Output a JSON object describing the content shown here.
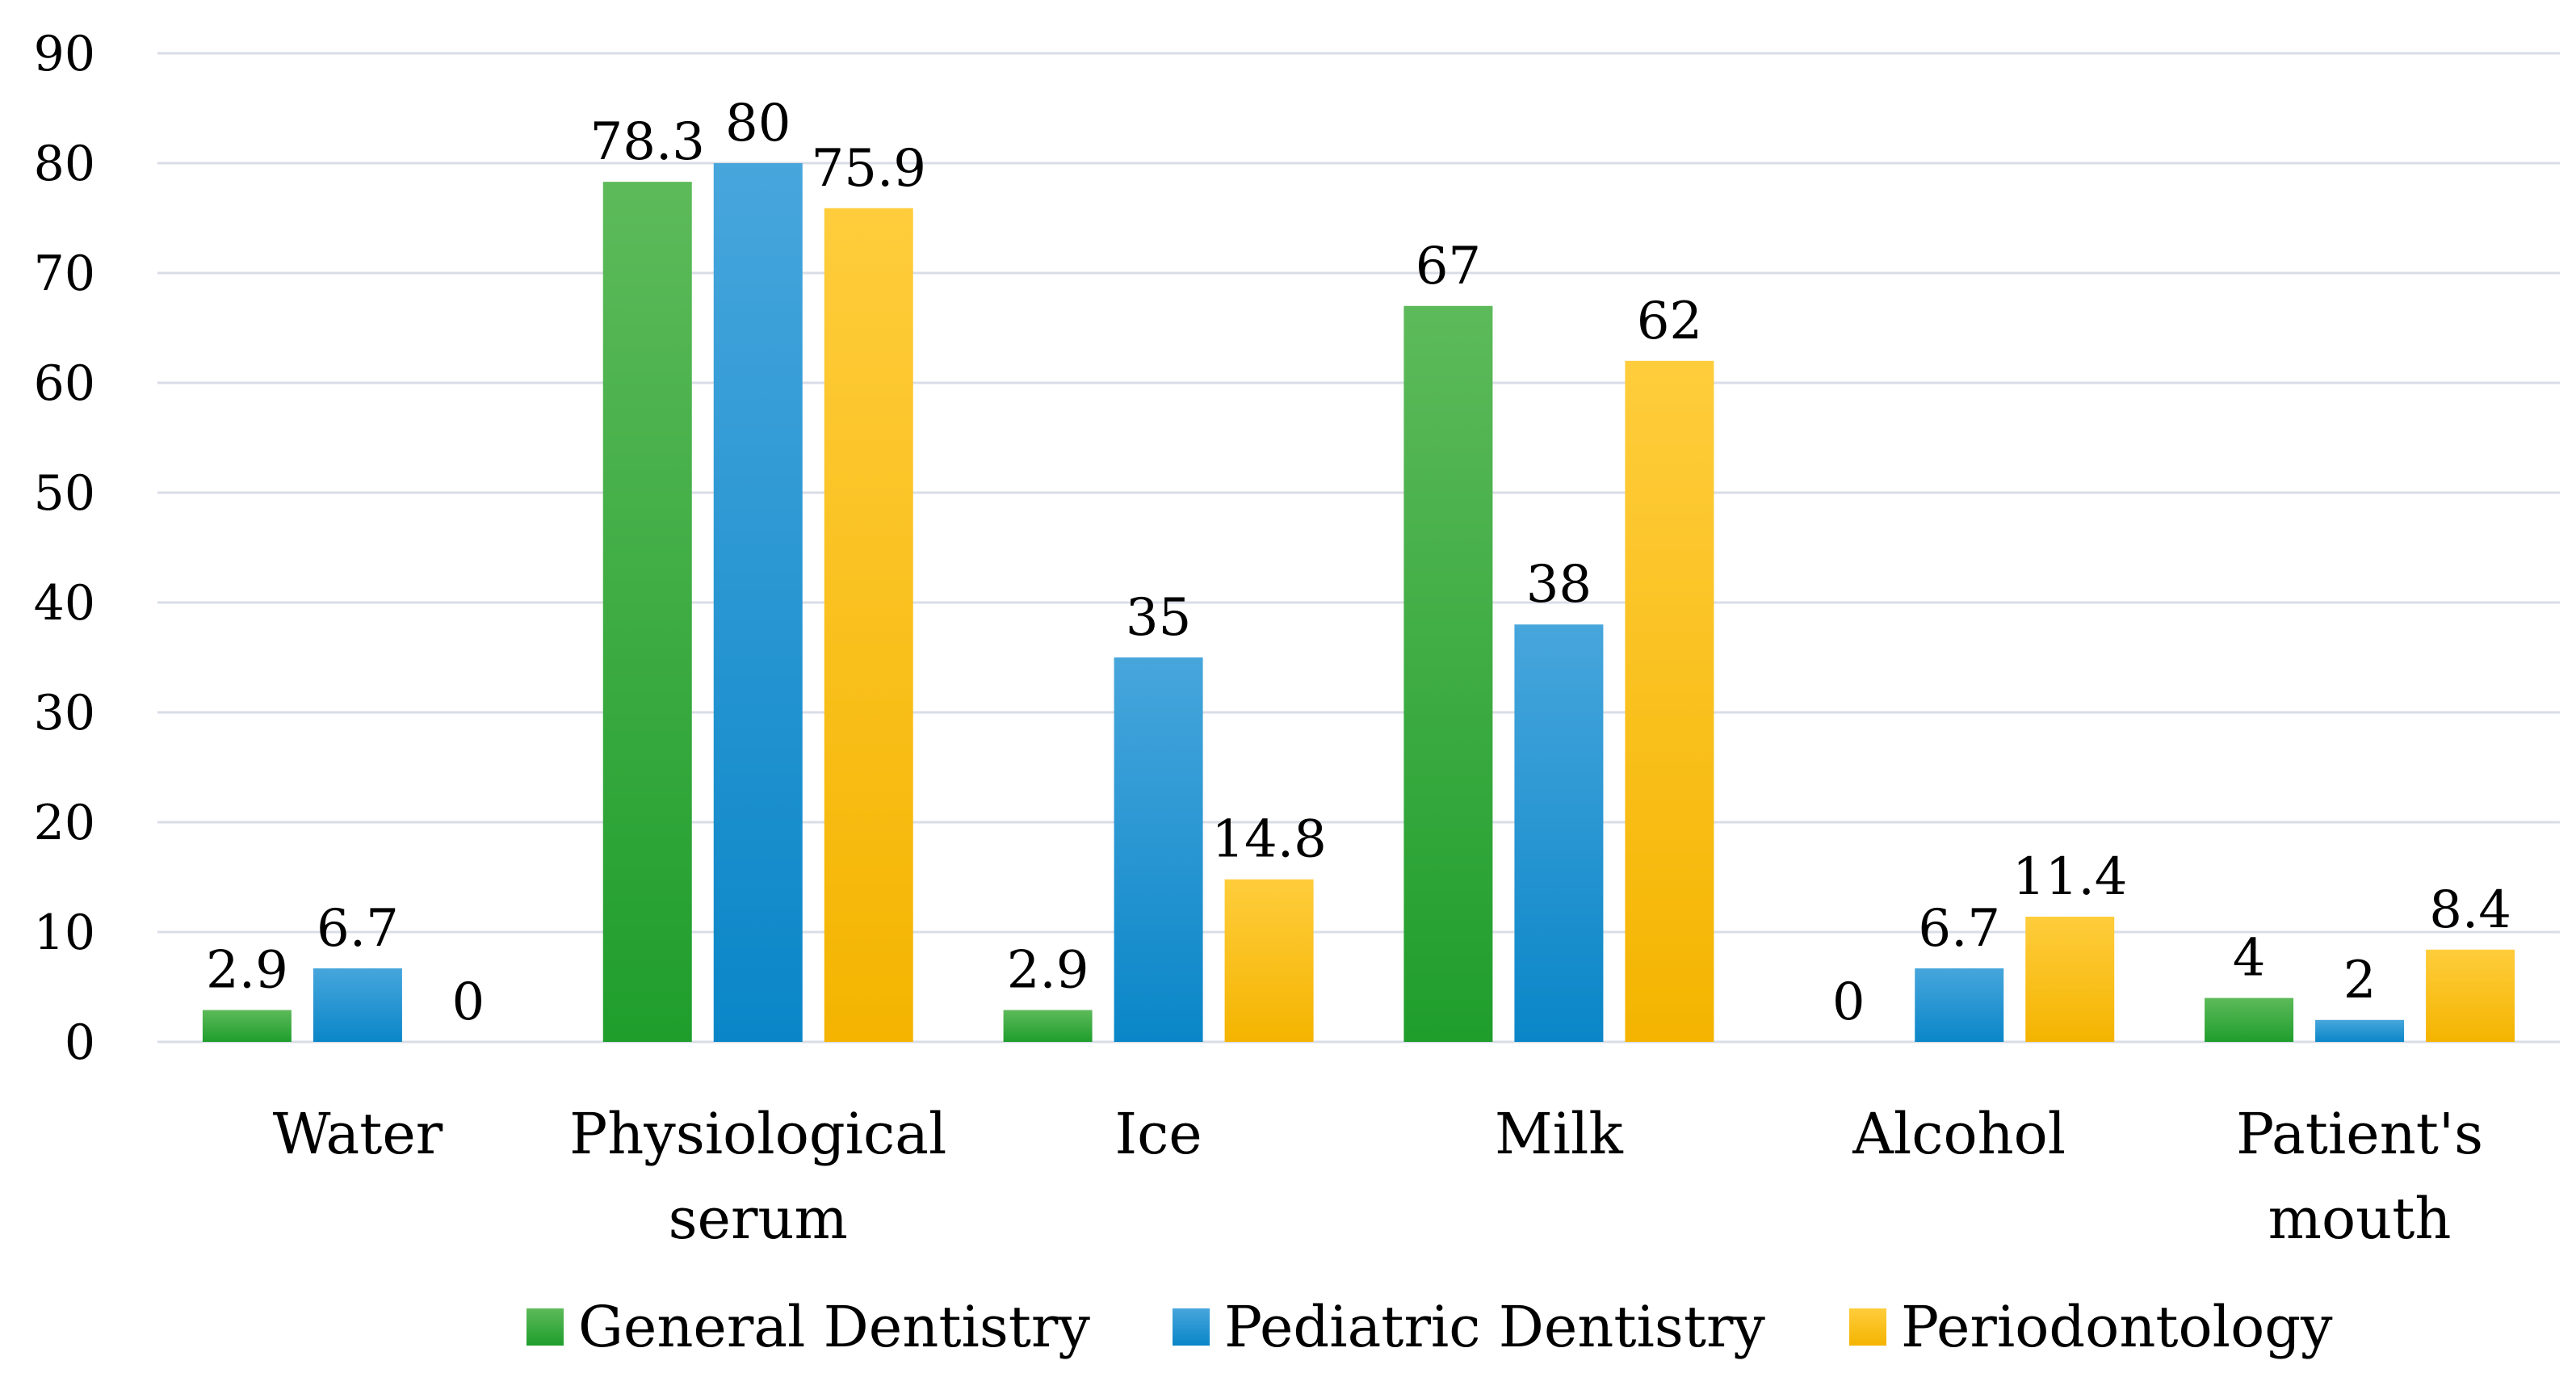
{
  "chart_data": {
    "type": "bar",
    "title": "",
    "xlabel": "",
    "ylabel": "",
    "ylim": [
      0,
      90
    ],
    "yticks": [
      0,
      10,
      20,
      30,
      40,
      50,
      60,
      70,
      80,
      90
    ],
    "grid": true,
    "legend_position": "bottom",
    "categories": [
      [
        "Water"
      ],
      [
        "Physiological",
        "serum"
      ],
      [
        "Ice"
      ],
      [
        "Milk"
      ],
      [
        "Alcohol"
      ],
      [
        "Patient's",
        "mouth"
      ]
    ],
    "series": [
      {
        "name": "General Dentistry",
        "color": "#2ca83a",
        "values": [
          2.9,
          78.3,
          2.9,
          67,
          0,
          4
        ],
        "labels": [
          "2.9",
          "78.3",
          "2.9",
          "67",
          "0",
          "4"
        ]
      },
      {
        "name": "Pediatric Dentistry",
        "color": "#0f96d8",
        "values": [
          6.7,
          80,
          35,
          38,
          6.7,
          2
        ],
        "labels": [
          "6.7",
          "80",
          "35",
          "38",
          "6.7",
          "2"
        ]
      },
      {
        "name": "Periodontology",
        "color": "#fcbd00",
        "values": [
          0,
          75.9,
          14.8,
          62,
          11.4,
          8.4
        ],
        "labels": [
          "0",
          "75.9",
          "14.8",
          "62",
          "11.4",
          "8.4"
        ]
      }
    ]
  }
}
